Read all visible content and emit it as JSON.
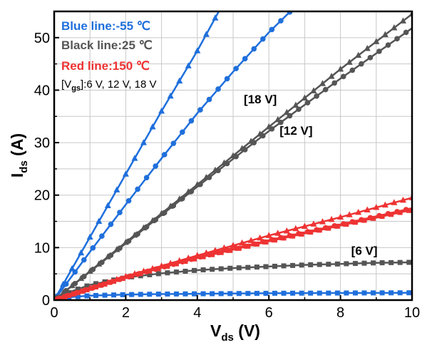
{
  "chart_data": {
    "type": "line",
    "xlabel": {
      "main": "V",
      "sub": "ds",
      "unit": " (V)"
    },
    "ylabel": {
      "main": "I",
      "sub": "ds",
      "unit": " (A)"
    },
    "xlim": [
      0,
      10
    ],
    "ylim": [
      0,
      55
    ],
    "xticks": [
      0,
      2,
      4,
      6,
      8,
      10
    ],
    "yticks": [
      0,
      10,
      20,
      30,
      40,
      50
    ],
    "grid": true,
    "legend_position": "top-left",
    "legend": {
      "blue": "Blue line:-55 ℃",
      "black": "Black line:25 ℃",
      "red": "Red line:150 ℃",
      "vgs_prefix": "[V",
      "vgs_sub": "gs",
      "vgs_suffix": "]:6 V, 12 V, 18 V"
    },
    "annotations": [
      {
        "text": "[18 V]",
        "x": 5.3,
        "y": 37.5
      },
      {
        "text": "[12 V]",
        "x": 6.3,
        "y": 31.5
      },
      {
        "text": "[6 V]",
        "x": 8.3,
        "y": 8.6
      }
    ],
    "colors": {
      "blue": "#1f6fdc",
      "black": "#555555",
      "red": "#ee3333"
    },
    "series": [
      {
        "name": "-55 ℃, 18 V",
        "color": "blue",
        "marker": "triangle",
        "x": [
          0,
          1,
          2,
          3,
          4,
          4.6
        ],
        "y": [
          0,
          12,
          24,
          36,
          47.5,
          55
        ]
      },
      {
        "name": "-55 ℃, 12 V",
        "color": "blue",
        "marker": "circle",
        "x": [
          0,
          1,
          2,
          3,
          4,
          5,
          6,
          6.6
        ],
        "y": [
          0,
          9.2,
          18.2,
          27,
          35.6,
          43.5,
          51,
          55
        ]
      },
      {
        "name": "-55 ℃, 6 V",
        "color": "blue",
        "marker": "square",
        "x": [
          0,
          0.5,
          1,
          2,
          3,
          4,
          6,
          8,
          10
        ],
        "y": [
          0,
          0.6,
          0.85,
          1.05,
          1.15,
          1.2,
          1.3,
          1.35,
          1.4
        ]
      },
      {
        "name": "25 ℃, 18 V",
        "color": "black",
        "marker": "triangle",
        "x": [
          0,
          2,
          4,
          6,
          8,
          10
        ],
        "y": [
          0,
          11,
          22,
          33,
          44,
          54.5
        ]
      },
      {
        "name": "25 ℃, 12 V",
        "color": "black",
        "marker": "circle",
        "x": [
          0,
          2,
          4,
          6,
          8,
          10
        ],
        "y": [
          0,
          10.8,
          21.6,
          32.2,
          42.2,
          51.8
        ]
      },
      {
        "name": "25 ℃, 6 V",
        "color": "black",
        "marker": "square",
        "x": [
          0,
          0.5,
          1,
          2,
          3,
          4,
          5,
          6,
          7,
          8,
          9,
          10
        ],
        "y": [
          0,
          1.7,
          2.9,
          4.3,
          5.1,
          5.7,
          6.1,
          6.4,
          6.7,
          6.9,
          7.1,
          7.2
        ]
      },
      {
        "name": "150 ℃, 18 V",
        "color": "red",
        "marker": "triangle",
        "x": [
          0,
          2,
          4,
          6,
          8,
          10
        ],
        "y": [
          0,
          4.5,
          8.5,
          12.3,
          15.8,
          19.5
        ]
      },
      {
        "name": "150 ℃, 12 V",
        "color": "red",
        "marker": "circle",
        "x": [
          0,
          2,
          4,
          6,
          8,
          10
        ],
        "y": [
          0,
          4.3,
          8.1,
          11.4,
          14.4,
          17.5
        ]
      },
      {
        "name": "150 ℃, 6 V",
        "color": "red",
        "marker": "square",
        "x": [
          0,
          2,
          4,
          6,
          8,
          10
        ],
        "y": [
          0,
          4.3,
          8.0,
          11.2,
          14.2,
          17.2
        ]
      }
    ]
  }
}
